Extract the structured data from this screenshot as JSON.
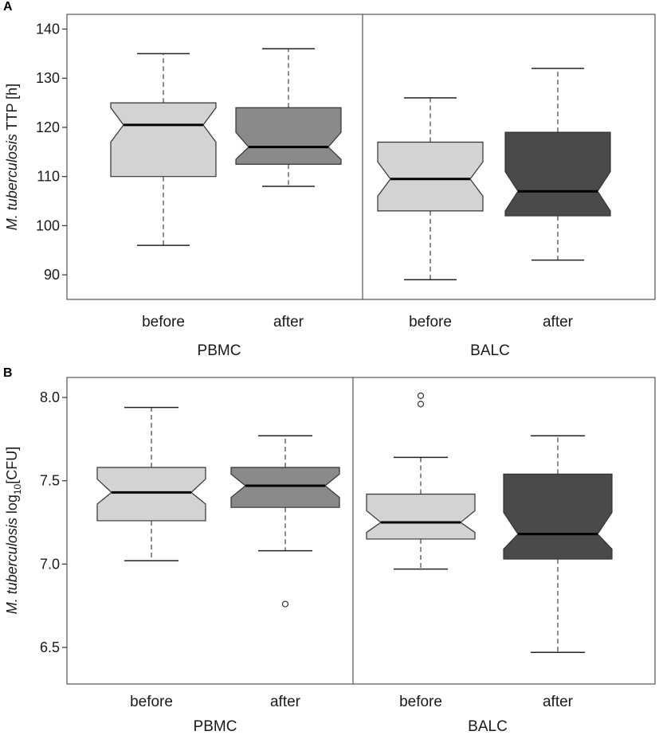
{
  "chart_data": [
    {
      "type": "boxplot",
      "panel_label": "A",
      "ylabel_italic": "M. tuberculosis",
      "ylabel_rest": " TTP [h]",
      "ylim": [
        85,
        143
      ],
      "yticks": [
        90,
        100,
        110,
        120,
        130,
        140
      ],
      "ytick_labels": [
        "90",
        "100",
        "110",
        "120",
        "130",
        "140"
      ],
      "groups": [
        {
          "name": "PBMC",
          "categories": [
            {
              "label": "before",
              "color": "#d3d3d3",
              "whisker_low": 96,
              "q1": 110,
              "median": 120.5,
              "q3": 125,
              "whisker_high": 135,
              "notch_low": 117,
              "notch_high": 124,
              "outliers": []
            },
            {
              "label": "after",
              "color": "#8a8a8a",
              "whisker_low": 108,
              "q1": 112.5,
              "median": 116,
              "q3": 124,
              "whisker_high": 136,
              "notch_low": 113.5,
              "notch_high": 119,
              "outliers": []
            }
          ]
        },
        {
          "name": "BALC",
          "categories": [
            {
              "label": "before",
              "color": "#d3d3d3",
              "whisker_low": 89,
              "q1": 103,
              "median": 109.5,
              "q3": 117,
              "whisker_high": 126,
              "notch_low": 106,
              "notch_high": 113,
              "outliers": []
            },
            {
              "label": "after",
              "color": "#4a4a4a",
              "whisker_low": 93,
              "q1": 102,
              "median": 107,
              "q3": 119,
              "whisker_high": 132,
              "notch_low": 103,
              "notch_high": 111,
              "outliers": []
            }
          ]
        }
      ]
    },
    {
      "type": "boxplot",
      "panel_label": "B",
      "ylabel_italic": "M. tuberculosis",
      "ylabel_rest": " log",
      "ylabel_sub": "10",
      "ylabel_end": "[CFU]",
      "ylim": [
        6.28,
        8.12
      ],
      "yticks": [
        6.5,
        7.0,
        7.5,
        8.0
      ],
      "ytick_labels": [
        "6.5",
        "7.0",
        "7.5",
        "8.0"
      ],
      "groups": [
        {
          "name": "PBMC",
          "categories": [
            {
              "label": "before",
              "color": "#d3d3d3",
              "whisker_low": 7.02,
              "q1": 7.26,
              "median": 7.43,
              "q3": 7.58,
              "whisker_high": 7.94,
              "notch_low": 7.36,
              "notch_high": 7.51,
              "outliers": []
            },
            {
              "label": "after",
              "color": "#8a8a8a",
              "whisker_low": 7.08,
              "q1": 7.34,
              "median": 7.47,
              "q3": 7.58,
              "whisker_high": 7.77,
              "notch_low": 7.4,
              "notch_high": 7.54,
              "outliers": [
                6.76
              ]
            }
          ]
        },
        {
          "name": "BALC",
          "categories": [
            {
              "label": "before",
              "color": "#d3d3d3",
              "whisker_low": 6.97,
              "q1": 7.15,
              "median": 7.25,
              "q3": 7.42,
              "whisker_high": 7.64,
              "notch_low": 7.19,
              "notch_high": 7.32,
              "outliers": [
                7.96,
                8.01
              ]
            },
            {
              "label": "after",
              "color": "#4a4a4a",
              "whisker_low": 6.47,
              "q1": 7.03,
              "median": 7.18,
              "q3": 7.54,
              "whisker_high": 7.77,
              "notch_low": 7.09,
              "notch_high": 7.31,
              "outliers": []
            }
          ]
        }
      ]
    }
  ]
}
